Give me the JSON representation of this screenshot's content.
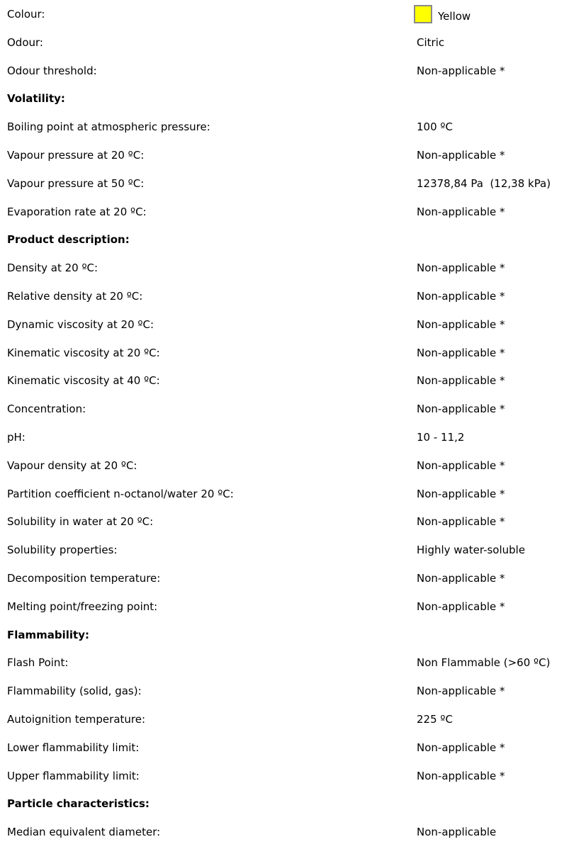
{
  "colour": {
    "label": "Colour:",
    "value": "Yellow",
    "swatch_color": "#ffff00"
  },
  "odour": {
    "label": "Odour:",
    "value": "Citric"
  },
  "odour_threshold": {
    "label": "Odour threshold:",
    "value": "Non-applicable *"
  },
  "volatility": {
    "heading": "Volatility:"
  },
  "boiling_point": {
    "label": "Boiling point at atmospheric pressure:",
    "value": "100 ºC"
  },
  "vapour_pressure_20": {
    "label": "Vapour pressure at 20 ºC:",
    "value": "Non-applicable *"
  },
  "vapour_pressure_50": {
    "label": "Vapour pressure at 50 ºC:",
    "value": "12378,84 Pa  (12,38 kPa)"
  },
  "evaporation_rate": {
    "label": "Evaporation rate at 20 ºC:",
    "value": "Non-applicable *"
  },
  "product_description": {
    "heading": "Product description:"
  },
  "density": {
    "label": "Density at 20 ºC:",
    "value": "Non-applicable *"
  },
  "relative_density": {
    "label": "Relative density at 20 ºC:",
    "value": "Non-applicable *"
  },
  "dynamic_viscosity": {
    "label": "Dynamic viscosity at 20 ºC:",
    "value": "Non-applicable *"
  },
  "kinematic_viscosity_20": {
    "label": "Kinematic viscosity at 20 ºC:",
    "value": "Non-applicable *"
  },
  "kinematic_viscosity_40": {
    "label": "Kinematic viscosity at 40 ºC:",
    "value": "Non-applicable *"
  },
  "concentration": {
    "label": "Concentration:",
    "value": "Non-applicable *"
  },
  "ph": {
    "label": "pH:",
    "value": "10 - 11,2"
  },
  "vapour_density": {
    "label": "Vapour density at 20 ºC:",
    "value": "Non-applicable *"
  },
  "partition_coefficient": {
    "label": "Partition coefficient n-octanol/water 20 ºC:",
    "value": "Non-applicable *"
  },
  "solubility_water": {
    "label": "Solubility in water at 20 ºC:",
    "value": "Non-applicable *"
  },
  "solubility_properties": {
    "label": "Solubility properties:",
    "value": "Highly water-soluble"
  },
  "decomposition_temperature": {
    "label": "Decomposition temperature:",
    "value": "Non-applicable *"
  },
  "melting_point": {
    "label": "Melting point/freezing point:",
    "value": "Non-applicable *"
  },
  "flammability": {
    "heading": "Flammability:"
  },
  "flash_point": {
    "label": "Flash Point:",
    "value": "Non Flammable (>60 ºC)"
  },
  "flammability_solid_gas": {
    "label": "Flammability (solid, gas):",
    "value": "Non-applicable *"
  },
  "autoignition": {
    "label": "Autoignition temperature:",
    "value": "225 ºC"
  },
  "lower_flammability": {
    "label": "Lower flammability limit:",
    "value": "Non-applicable *"
  },
  "upper_flammability": {
    "label": "Upper flammability limit:",
    "value": "Non-applicable *"
  },
  "particle_characteristics": {
    "heading": "Particle characteristics:"
  },
  "median_diameter": {
    "label": "Median equivalent diameter:",
    "value": "Non-applicable"
  }
}
